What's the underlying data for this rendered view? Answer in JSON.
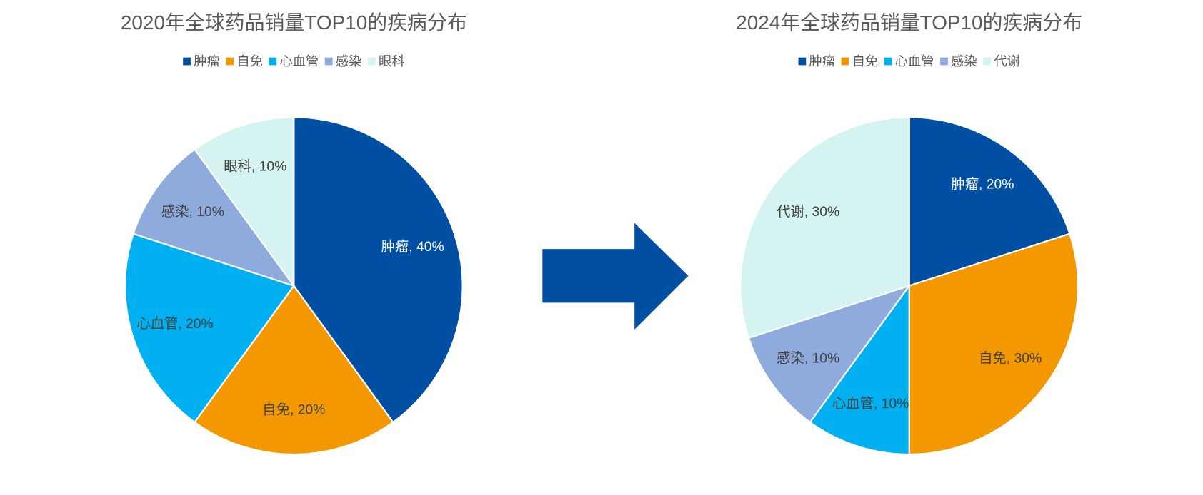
{
  "chart_data": [
    {
      "type": "pie",
      "title": "2020年全球药品销量TOP10的疾病分布",
      "categories": [
        "肿瘤",
        "自免",
        "心血管",
        "感染",
        "眼科"
      ],
      "values": [
        40,
        20,
        20,
        10,
        10
      ],
      "value_labels": [
        "肿瘤, 40%",
        "自免, 20%",
        "心血管, 20%",
        "感染, 10%",
        "眼科, 10%"
      ],
      "colors": [
        "#004fa3",
        "#f39800",
        "#00b0f0",
        "#8faadc",
        "#d5f3f0"
      ],
      "legend": "top"
    },
    {
      "type": "pie",
      "title": "2024年全球药品销量TOP10的疾病分布",
      "categories": [
        "肿瘤",
        "自免",
        "心血管",
        "感染",
        "代谢"
      ],
      "values": [
        20,
        30,
        10,
        10,
        30
      ],
      "value_labels": [
        "肿瘤, 20%",
        "自免, 30%",
        "心血管, 10%",
        "感染, 10%",
        "代谢, 30%"
      ],
      "colors": [
        "#004fa3",
        "#f39800",
        "#00b0f0",
        "#8faadc",
        "#d5f3f0"
      ],
      "legend": "top"
    }
  ]
}
